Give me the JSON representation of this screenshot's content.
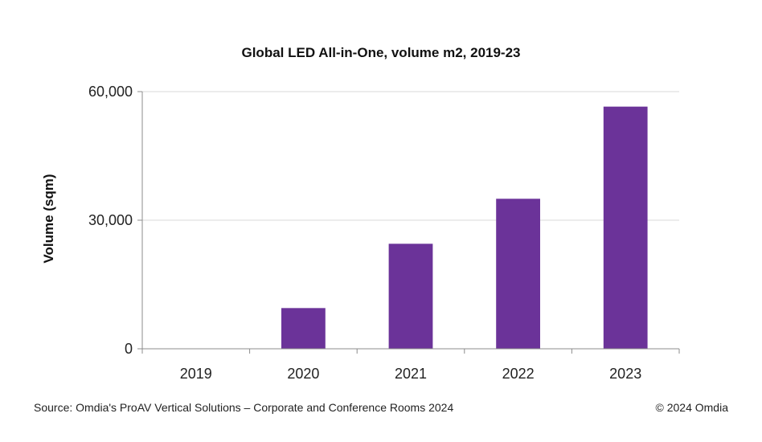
{
  "chart_data": {
    "type": "bar",
    "title": "Global LED All-in-One, volume m2, 2019-23",
    "categories": [
      "2019",
      "2020",
      "2021",
      "2022",
      "2023"
    ],
    "values": [
      0,
      9500,
      24500,
      35000,
      56500
    ],
    "xlabel": "",
    "ylabel": "Volume (sqm)",
    "ylim": [
      0,
      60000
    ],
    "yticks": [
      0,
      30000,
      60000
    ],
    "ytick_labels": [
      "0",
      "30,000",
      "60,000"
    ],
    "grid": true,
    "legend": "none",
    "bar_color": "#6b3399",
    "grid_color": "#d9d9d9",
    "axis_color": "#8c8c8c"
  },
  "footer": {
    "source": "Source: Omdia's ProAV Vertical Solutions – Corporate and Conference Rooms 2024",
    "copyright": "© 2024 Omdia"
  }
}
